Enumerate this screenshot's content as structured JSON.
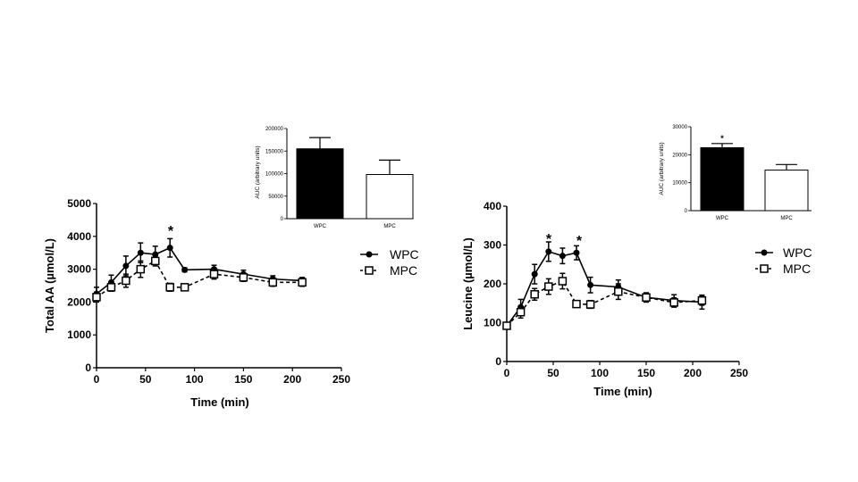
{
  "chart_data": [
    {
      "type": "line",
      "id": "totalaa",
      "xlabel": "Time (min)",
      "ylabel": "Total AA (µmol/L)",
      "xlim": [
        0,
        250
      ],
      "ylim": [
        0,
        5000
      ],
      "xticks": [
        0,
        50,
        100,
        150,
        200,
        250
      ],
      "yticks": [
        0,
        1000,
        2000,
        3000,
        4000,
        5000
      ],
      "series": [
        {
          "name": "WPC",
          "x": [
            0,
            15,
            30,
            45,
            60,
            75,
            90,
            120,
            150,
            180,
            210
          ],
          "values": [
            2250,
            2600,
            3100,
            3500,
            3450,
            3650,
            2980,
            3000,
            2850,
            2700,
            2650
          ],
          "errors": [
            200,
            220,
            300,
            300,
            250,
            280,
            60,
            120,
            120,
            100,
            100
          ]
        },
        {
          "name": "MPC",
          "x": [
            0,
            15,
            30,
            45,
            60,
            75,
            90,
            120,
            150,
            180,
            210
          ],
          "values": [
            2150,
            2450,
            2650,
            3000,
            3250,
            2450,
            2450,
            2850,
            2750,
            2600,
            2600
          ],
          "errors": [
            150,
            120,
            200,
            250,
            150,
            120,
            100,
            150,
            120,
            120,
            120
          ]
        }
      ],
      "annotations": [
        "*"
      ],
      "legend": "right"
    },
    {
      "type": "bar",
      "id": "totalaa_auc",
      "ylabel": "AUC (arbitrary units)",
      "categories": [
        "WPC",
        "MPC"
      ],
      "values": [
        155000,
        98000
      ],
      "errors": [
        25000,
        32000
      ],
      "ylim": [
        0,
        200000
      ],
      "yticks": [
        "0",
        "50000",
        "100000",
        "150000",
        "200000"
      ],
      "yticks_num": [
        0,
        50000,
        100000,
        150000,
        200000
      ]
    },
    {
      "type": "line",
      "id": "leucine",
      "xlabel": "Time (min)",
      "ylabel": "Leucine (µmol/L)",
      "xlim": [
        0,
        250
      ],
      "ylim": [
        0,
        400
      ],
      "xticks": [
        0,
        50,
        100,
        150,
        200,
        250
      ],
      "yticks": [
        0,
        100,
        200,
        300,
        400
      ],
      "series": [
        {
          "name": "WPC",
          "x": [
            0,
            15,
            30,
            45,
            60,
            75,
            90,
            120,
            150,
            180,
            210
          ],
          "values": [
            92,
            140,
            225,
            283,
            272,
            280,
            197,
            192,
            165,
            157,
            153
          ],
          "errors": [
            5,
            20,
            25,
            25,
            20,
            18,
            20,
            18,
            12,
            15,
            18
          ]
        },
        {
          "name": "MPC",
          "x": [
            0,
            15,
            30,
            45,
            60,
            75,
            90,
            120,
            150,
            180,
            210
          ],
          "values": [
            92,
            127,
            173,
            193,
            207,
            148,
            147,
            180,
            165,
            152,
            157
          ],
          "errors": [
            5,
            15,
            15,
            20,
            20,
            8,
            10,
            20,
            10,
            12,
            12
          ]
        }
      ],
      "annotations": [
        "*",
        "*"
      ],
      "legend": "right"
    },
    {
      "type": "bar",
      "id": "leucine_auc",
      "ylabel": "AUC (arbitrary units)",
      "categories": [
        "WPC",
        "MPC"
      ],
      "values": [
        22500,
        14500
      ],
      "errors": [
        1500,
        2000
      ],
      "ylim": [
        0,
        30000
      ],
      "yticks": [
        "0",
        "10000",
        "20000",
        "30000"
      ],
      "yticks_num": [
        0,
        10000,
        20000,
        30000
      ],
      "annotations": [
        "*"
      ]
    }
  ]
}
